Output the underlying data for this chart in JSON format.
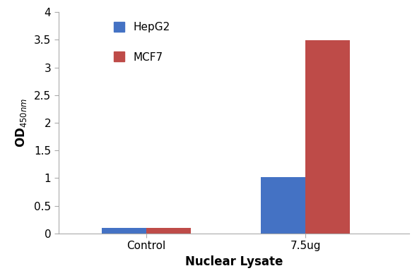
{
  "categories": [
    "Control",
    "7.5ug"
  ],
  "hepg2_values": [
    0.1,
    1.02
  ],
  "mcf7_values": [
    0.1,
    3.49
  ],
  "hepg2_color": "#4472C4",
  "mcf7_color": "#BE4B48",
  "xlabel": "Nuclear Lysate",
  "ylim": [
    0,
    4.0
  ],
  "yticks": [
    0,
    0.5,
    1,
    1.5,
    2,
    2.5,
    3,
    3.5,
    4
  ],
  "ytick_labels": [
    "0",
    "0.5",
    "1",
    "1.5",
    "2",
    "2.5",
    "3",
    "3.5",
    "4"
  ],
  "legend_labels": [
    "HepG2",
    "MCF7"
  ],
  "bar_width": 0.28,
  "background_color": "#ffffff",
  "axis_label_fontsize": 12,
  "tick_fontsize": 11,
  "legend_fontsize": 11,
  "spine_color": "#aaaaaa"
}
